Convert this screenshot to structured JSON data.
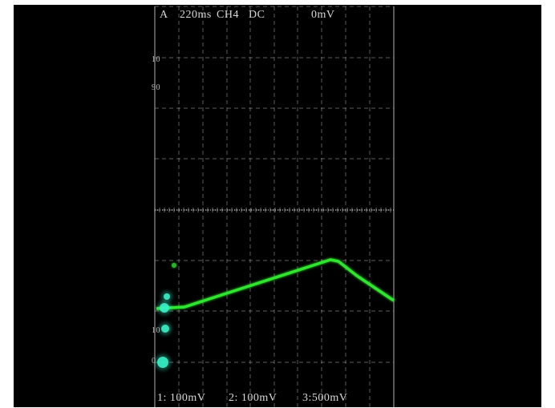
{
  "colors": {
    "background": "#000000",
    "grid": "#b8b8b8",
    "trace": "#2ee62e",
    "marker": "#37f2c8",
    "text": "#d8d8d8"
  },
  "header": {
    "trigger_mode": "A",
    "timebase": "220ms",
    "trigger_source": "CH4",
    "coupling": "DC",
    "trigger_level": "0mV"
  },
  "markers": {
    "level_upper": "10",
    "level_lower": "90",
    "ref_1": "10",
    "ref_2": "0"
  },
  "footer": {
    "ch1_scale": "1: 100mV",
    "ch2_scale": "2: 100mV",
    "ch3_scale": "3:500mV"
  }
}
